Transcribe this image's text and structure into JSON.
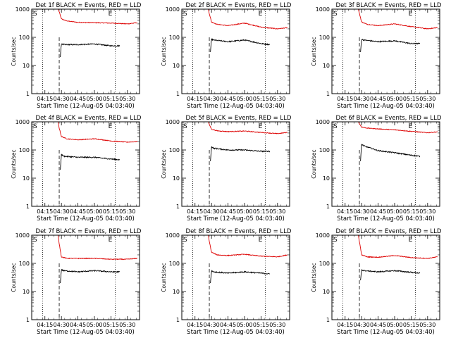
{
  "chart_data": {
    "type": "line",
    "xlabel": "Start Time (12-Aug-05 04:03:40)",
    "ylabel": "Counts/sec",
    "x_tick_labels": [
      "04:15",
      "04:30",
      "04:45",
      "05:00",
      "05:15",
      "05:30"
    ],
    "y_scale": "log",
    "ylim": [
      1,
      1000
    ],
    "y_tick_labels": [
      "1",
      "10",
      "100",
      "1000"
    ],
    "colors": {
      "events": "#000000",
      "lld": "#dd0000"
    },
    "panels": [
      {
        "title": "Det 1f BLACK = Events, RED = LLD",
        "marker_S_label": "S",
        "marker_E_label": "E",
        "series": [
          {
            "color": "red",
            "x": [
              "04:27",
              "04:28",
              "04:30",
              "04:35",
              "04:45",
              "05:00",
              "05:15",
              "05:30",
              "05:39"
            ],
            "values": [
              1000,
              800,
              450,
              380,
              340,
              330,
              320,
              300,
              330
            ]
          },
          {
            "color": "black",
            "x": [
              "04:29",
              "04:30",
              "04:32",
              "04:45",
              "05:00",
              "05:15",
              "05:23"
            ],
            "values": [
              20,
              60,
              55,
              55,
              58,
              50,
              50
            ]
          }
        ]
      },
      {
        "title": "Det 2f BLACK = Events, RED = LLD",
        "marker_S_label": "S",
        "marker_E_label": "E",
        "series": [
          {
            "color": "red",
            "x": [
              "04:27",
              "04:28",
              "04:30",
              "04:35",
              "04:45",
              "05:00",
              "05:15",
              "05:30",
              "05:39"
            ],
            "values": [
              1000,
              700,
              350,
              290,
              260,
              320,
              230,
              200,
              220
            ]
          },
          {
            "color": "black",
            "x": [
              "04:29",
              "04:30",
              "04:32",
              "04:45",
              "05:00",
              "05:15",
              "05:23"
            ],
            "values": [
              30,
              85,
              80,
              70,
              80,
              60,
              55
            ]
          }
        ]
      },
      {
        "title": "Det 3f BLACK = Events, RED = LLD",
        "marker_S_label": "S",
        "marker_E_label": "E",
        "series": [
          {
            "color": "red",
            "x": [
              "04:27",
              "04:28",
              "04:30",
              "04:35",
              "04:45",
              "05:00",
              "05:15",
              "05:30",
              "05:39"
            ],
            "values": [
              1000,
              700,
              350,
              290,
              260,
              300,
              240,
              200,
              220
            ]
          },
          {
            "color": "black",
            "x": [
              "04:29",
              "04:30",
              "04:32",
              "04:45",
              "05:00",
              "05:15",
              "05:23"
            ],
            "values": [
              30,
              85,
              80,
              70,
              75,
              60,
              60
            ]
          }
        ]
      },
      {
        "title": "Det 4f BLACK = Events, RED = LLD",
        "marker_S_label": "S",
        "marker_E_label": "E",
        "series": [
          {
            "color": "red",
            "x": [
              "04:27",
              "04:28",
              "04:30",
              "04:35",
              "04:45",
              "05:00",
              "05:15",
              "05:30",
              "05:39"
            ],
            "values": [
              1000,
              600,
              300,
              250,
              230,
              250,
              210,
              190,
              200
            ]
          },
          {
            "color": "black",
            "x": [
              "04:29",
              "04:30",
              "04:32",
              "04:45",
              "05:00",
              "05:15",
              "05:23"
            ],
            "values": [
              20,
              70,
              60,
              55,
              55,
              48,
              45
            ]
          }
        ]
      },
      {
        "title": "Det 5f BLACK = Events, RED = LLD",
        "marker_S_label": "S",
        "marker_E_label": "E",
        "series": [
          {
            "color": "red",
            "x": [
              "04:27",
              "04:28",
              "04:30",
              "04:35",
              "04:45",
              "05:00",
              "05:15",
              "05:30",
              "05:39"
            ],
            "values": [
              1000,
              800,
              550,
              480,
              450,
              470,
              420,
              380,
              420
            ]
          },
          {
            "color": "black",
            "x": [
              "04:29",
              "04:30",
              "04:32",
              "04:45",
              "05:00",
              "05:15",
              "05:23"
            ],
            "values": [
              40,
              130,
              115,
              100,
              100,
              90,
              90
            ]
          }
        ]
      },
      {
        "title": "Det 6f BLACK = Events, RED = LLD",
        "marker_S_label": "S",
        "marker_E_label": "E",
        "series": [
          {
            "color": "red",
            "x": [
              "04:27",
              "04:28",
              "04:30",
              "04:35",
              "04:45",
              "05:00",
              "05:15",
              "05:30",
              "05:39"
            ],
            "values": [
              1000,
              850,
              650,
              600,
              560,
              520,
              460,
              410,
              440
            ]
          },
          {
            "color": "black",
            "x": [
              "04:29",
              "04:30",
              "04:32",
              "04:45",
              "05:00",
              "05:15",
              "05:23"
            ],
            "values": [
              40,
              160,
              140,
              95,
              80,
              65,
              60
            ]
          }
        ]
      },
      {
        "title": "Det 7f BLACK = Events, RED = LLD",
        "marker_S_label": "S",
        "marker_E_label": "E",
        "series": [
          {
            "color": "red",
            "x": [
              "04:27",
              "04:28",
              "04:30",
              "04:35",
              "04:45",
              "05:00",
              "05:15",
              "05:30",
              "05:39"
            ],
            "values": [
              1000,
              500,
              170,
              150,
              150,
              150,
              140,
              140,
              150
            ]
          },
          {
            "color": "black",
            "x": [
              "04:29",
              "04:30",
              "04:32",
              "04:45",
              "05:00",
              "05:15",
              "05:23"
            ],
            "values": [
              20,
              60,
              55,
              50,
              55,
              50,
              50
            ]
          }
        ]
      },
      {
        "title": "Det 8f BLACK = Events, RED = LLD",
        "marker_S_label": "S",
        "marker_E_label": "E",
        "series": [
          {
            "color": "red",
            "x": [
              "04:27",
              "04:28",
              "04:30",
              "04:35",
              "04:45",
              "05:00",
              "05:15",
              "05:30",
              "05:39"
            ],
            "values": [
              1000,
              600,
              250,
              200,
              190,
              210,
              180,
              170,
              200
            ]
          },
          {
            "color": "black",
            "x": [
              "04:29",
              "04:30",
              "04:32",
              "04:45",
              "05:00",
              "05:15",
              "05:23"
            ],
            "values": [
              20,
              55,
              50,
              45,
              50,
              45,
              42
            ]
          }
        ]
      },
      {
        "title": "Det 9f BLACK = Events, RED = LLD",
        "marker_S_label": "S",
        "marker_E_label": "E",
        "series": [
          {
            "color": "red",
            "x": [
              "04:27",
              "04:28",
              "04:30",
              "04:35",
              "04:45",
              "05:00",
              "05:15",
              "05:30",
              "05:39"
            ],
            "values": [
              1000,
              600,
              200,
              170,
              165,
              190,
              160,
              150,
              170
            ]
          },
          {
            "color": "black",
            "x": [
              "04:29",
              "04:30",
              "04:32",
              "04:45",
              "05:00",
              "05:15",
              "05:23"
            ],
            "values": [
              25,
              60,
              55,
              50,
              55,
              48,
              45
            ]
          }
        ]
      }
    ]
  }
}
